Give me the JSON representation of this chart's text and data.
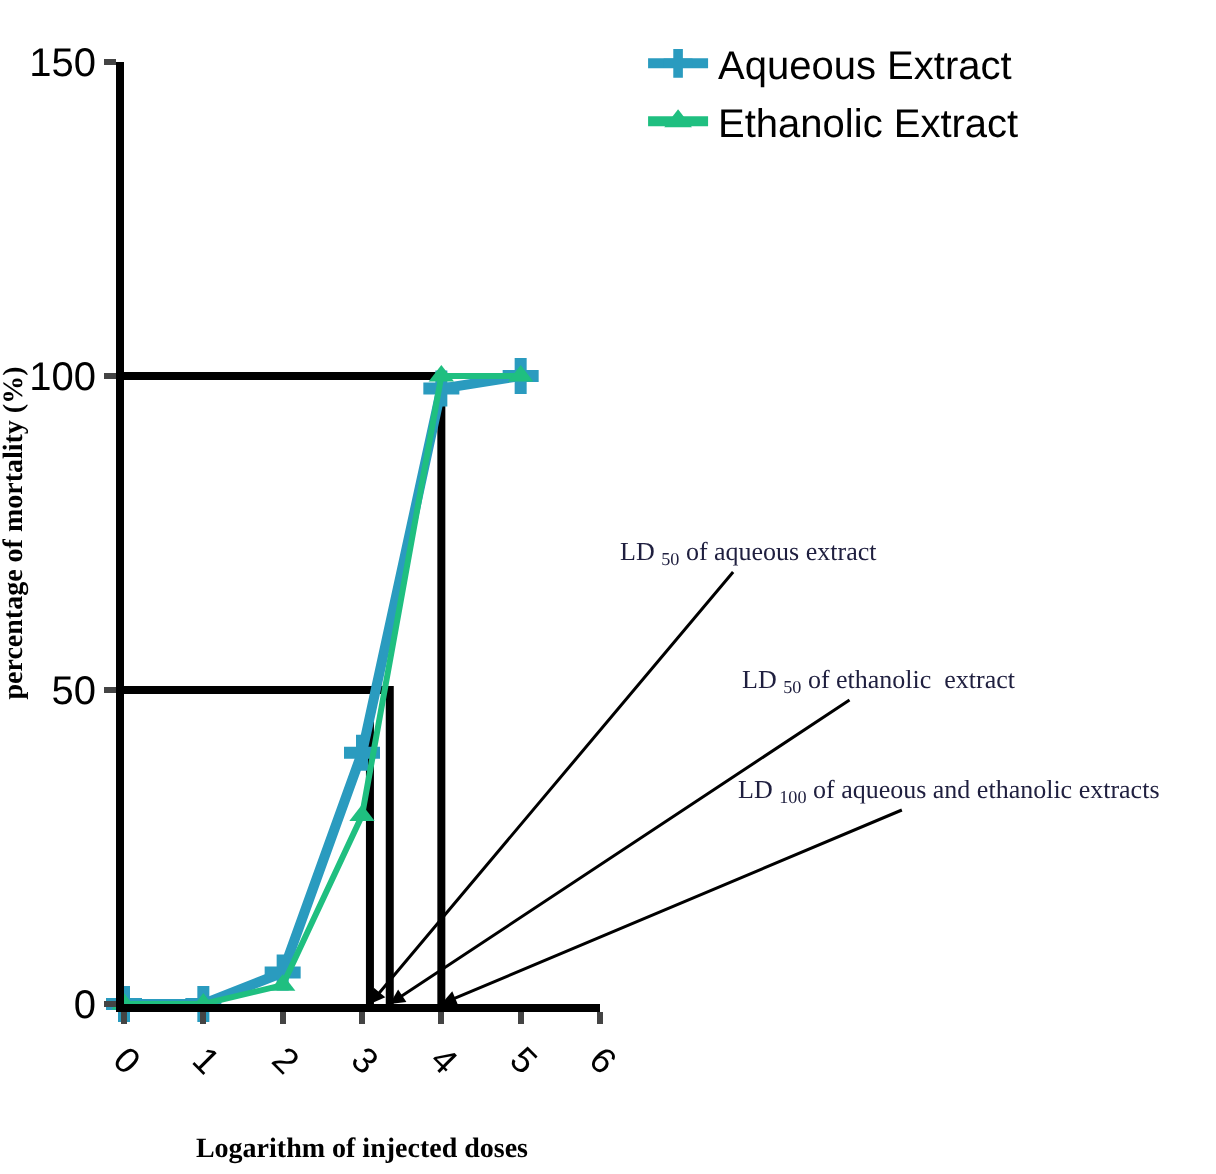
{
  "chart_data": {
    "type": "line",
    "xlabel": "Logarithm of injected doses",
    "ylabel": "percentage of mortality (%)",
    "x": [
      0,
      1,
      2,
      3,
      4,
      5
    ],
    "series": [
      {
        "name": "Aqueous Extract",
        "color": "#2a9bbf",
        "marker": "cross",
        "values": [
          0,
          0,
          5,
          40,
          98,
          100
        ]
      },
      {
        "name": "Ethanolic Extract",
        "color": "#1fbf80",
        "marker": "triangle",
        "values": [
          0,
          0,
          3,
          30,
          100,
          100
        ]
      },
      {
        "type": "line",
        "color": "#000000",
        "marker": "none",
        "x": [
          0,
          4,
          4
        ],
        "values": [
          100,
          100,
          0
        ]
      },
      {
        "type": "line",
        "color": "#000000",
        "marker": "none",
        "x": [
          0,
          3.35,
          3.35
        ],
        "values": [
          50,
          50,
          0
        ]
      },
      {
        "type": "line",
        "color": "#000000",
        "marker": "none",
        "x": [
          3.1,
          3.1
        ],
        "values": [
          45,
          0
        ]
      }
    ],
    "xlim": [
      0,
      6
    ],
    "xticks": [
      0,
      1,
      2,
      3,
      4,
      5,
      6
    ],
    "ylim": [
      0,
      150
    ],
    "yticks": [
      0,
      50,
      100,
      150
    ],
    "legend": "top right",
    "annotations": [
      {
        "text": "LD $_{50}$ of aqueous extract",
        "x": 3.1,
        "y": 0
      },
      {
        "text": "LD $_{50}$ of ethanolic  extract",
        "x": 3.35,
        "y": 0
      },
      {
        "text": "LD $_{100}$ of aqueous and ethanolic extracts",
        "x": 4,
        "y": 0
      }
    ]
  }
}
